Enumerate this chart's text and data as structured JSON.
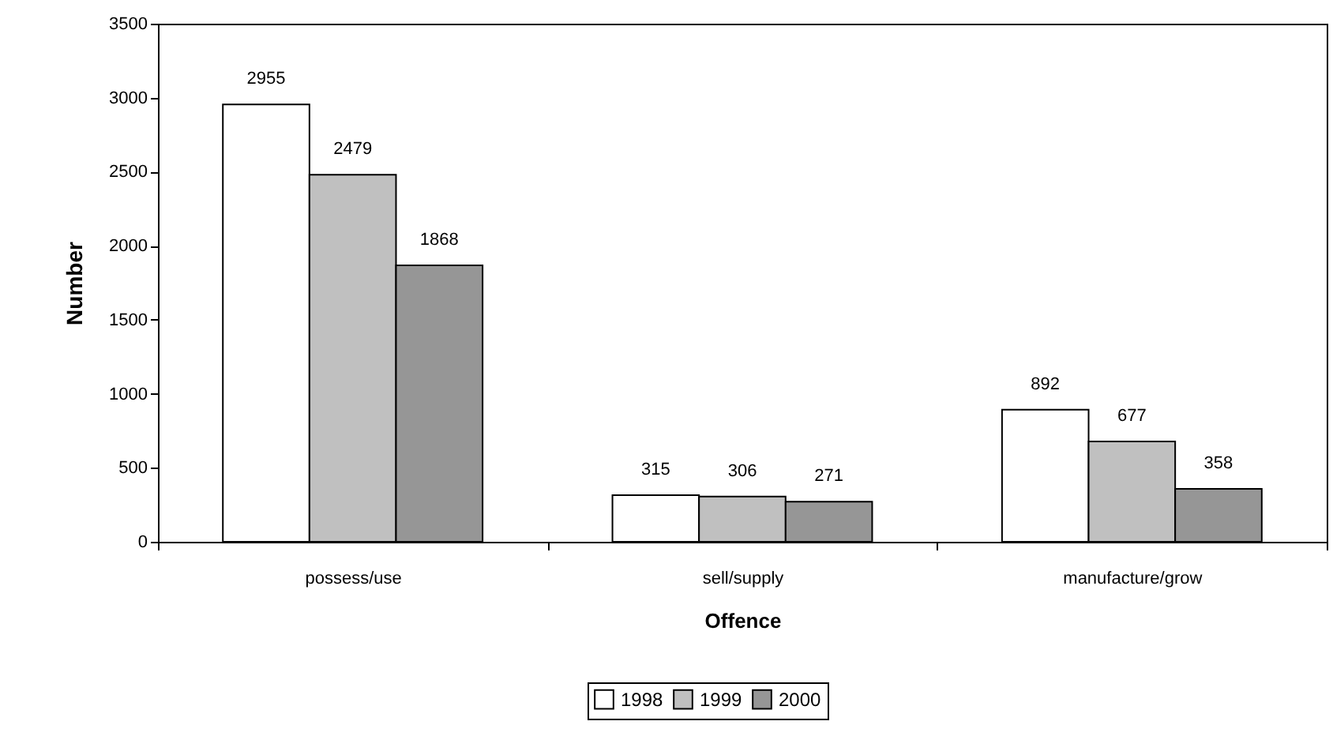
{
  "chart_data": {
    "type": "bar",
    "xlabel": "Offence",
    "ylabel": "Number",
    "categories": [
      "possess/use",
      "sell/supply",
      "manufacture/grow"
    ],
    "series": [
      {
        "name": "1998",
        "color": "#ffffff",
        "values": [
          2955,
          315,
          892
        ]
      },
      {
        "name": "1999",
        "color": "#c0c0c0",
        "values": [
          2479,
          306,
          677
        ]
      },
      {
        "name": "2000",
        "color": "#969696",
        "values": [
          1868,
          271,
          358
        ]
      }
    ],
    "ylim": [
      0,
      3500
    ],
    "yticks": [
      0,
      500,
      1000,
      1500,
      2000,
      2500,
      3000,
      3500
    ],
    "grid": false,
    "legend": "bottom",
    "data_labels": true
  }
}
